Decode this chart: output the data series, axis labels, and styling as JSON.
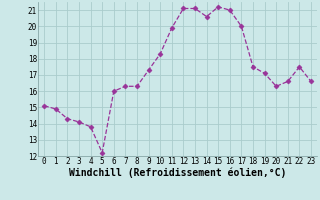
{
  "x": [
    0,
    1,
    2,
    3,
    4,
    5,
    6,
    7,
    8,
    9,
    10,
    11,
    12,
    13,
    14,
    15,
    16,
    17,
    18,
    19,
    20,
    21,
    22,
    23
  ],
  "y": [
    15.1,
    14.9,
    14.3,
    14.1,
    13.8,
    12.2,
    16.0,
    16.3,
    16.3,
    17.3,
    18.3,
    19.9,
    21.1,
    21.1,
    20.6,
    21.2,
    21.0,
    20.0,
    17.5,
    17.1,
    16.3,
    16.6,
    17.5,
    16.6
  ],
  "line_color": "#993399",
  "marker": "D",
  "marker_size": 2.5,
  "bg_color": "#cce8e8",
  "grid_color": "#aacccc",
  "xlabel": "Windchill (Refroidissement éolien,°C)",
  "ylim": [
    12,
    21.5
  ],
  "xlim": [
    -0.5,
    23.5
  ],
  "yticks": [
    12,
    13,
    14,
    15,
    16,
    17,
    18,
    19,
    20,
    21
  ],
  "xticks": [
    0,
    1,
    2,
    3,
    4,
    5,
    6,
    7,
    8,
    9,
    10,
    11,
    12,
    13,
    14,
    15,
    16,
    17,
    18,
    19,
    20,
    21,
    22,
    23
  ],
  "tick_fontsize": 5.5,
  "xlabel_fontsize": 7.0
}
